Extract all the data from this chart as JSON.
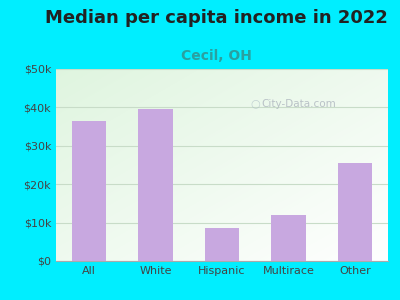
{
  "title": "Median per capita income in 2022",
  "subtitle": "Cecil, OH",
  "categories": [
    "All",
    "White",
    "Hispanic",
    "Multirace",
    "Other"
  ],
  "values": [
    36500,
    39500,
    8500,
    12000,
    25500
  ],
  "bar_color": "#c8a8e0",
  "title_fontsize": 13,
  "subtitle_fontsize": 10,
  "subtitle_color": "#2aa0a0",
  "title_color": "#222222",
  "background_color": "#00eeff",
  "ylim": [
    0,
    50000
  ],
  "yticks": [
    0,
    10000,
    20000,
    30000,
    40000,
    50000
  ],
  "ytick_labels": [
    "$0",
    "$10k",
    "$20k",
    "$30k",
    "$40k",
    "$50k"
  ],
  "grid_color": "#c8dcc8",
  "tick_color": "#444444",
  "watermark": "City-Data.com",
  "bar_width": 0.52
}
